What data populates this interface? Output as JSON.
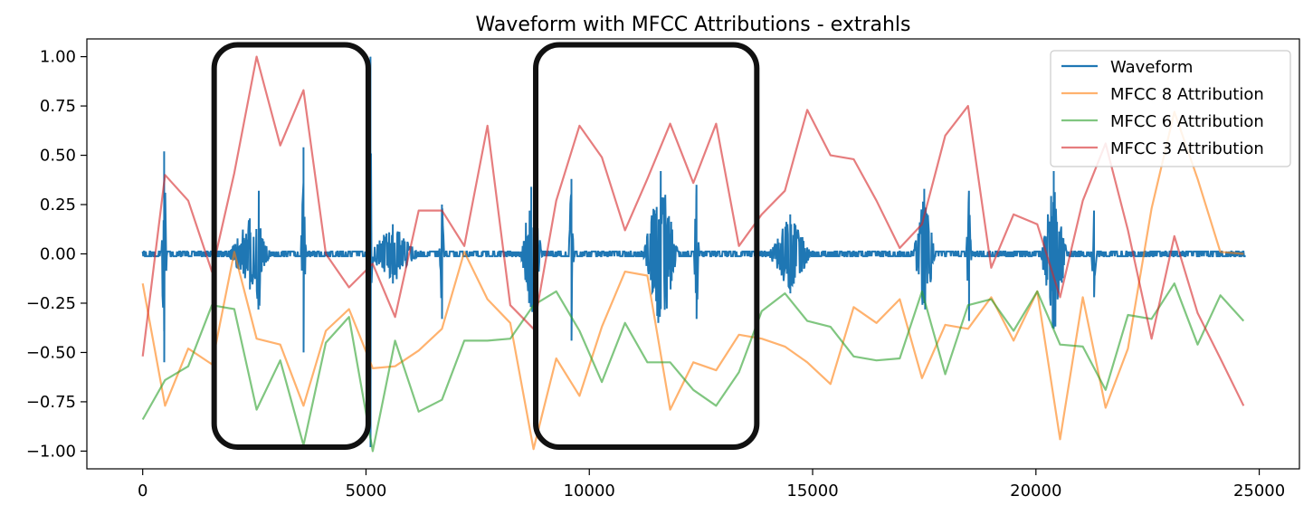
{
  "chart_data": {
    "type": "line",
    "title": "Waveform with MFCC Attributions - extrahls",
    "xlabel": "",
    "ylabel": "",
    "xlim": [
      -1250,
      25900
    ],
    "ylim": [
      -1.09,
      1.09
    ],
    "xticks": [
      0,
      5000,
      10000,
      15000,
      20000,
      25000
    ],
    "xtick_labels": [
      "0",
      "5000",
      "10000",
      "15000",
      "20000",
      "25000"
    ],
    "yticks": [
      1.0,
      0.75,
      0.5,
      0.25,
      0.0,
      -0.25,
      -0.5,
      -0.75,
      -1.0
    ],
    "ytick_labels": [
      "1.00",
      "0.75",
      "0.50",
      "0.25",
      "0.00",
      "−0.25",
      "−0.50",
      "−0.75",
      "−1.00"
    ],
    "grid": false,
    "legend_position": "top-right",
    "series": [
      {
        "name": "Waveform",
        "color": "#1f77b4",
        "kind": "waveform",
        "x_range": [
          0,
          24700
        ],
        "baseline_amplitude": 0.012,
        "bursts": [
          {
            "x": 480,
            "up": 0.52,
            "down": -0.55,
            "width": 60
          },
          {
            "x": 2400,
            "up": 0.18,
            "down": -0.18,
            "width": 500
          },
          {
            "x": 2600,
            "up": 0.32,
            "down": -0.22,
            "width": 120
          },
          {
            "x": 3600,
            "up": 0.54,
            "down": -0.5,
            "width": 60
          },
          {
            "x": 5100,
            "up": 1.0,
            "down": -0.98,
            "width": 40
          },
          {
            "x": 5600,
            "up": 0.15,
            "down": -0.15,
            "width": 600
          },
          {
            "x": 6700,
            "up": 0.25,
            "down": -0.33,
            "width": 60
          },
          {
            "x": 8700,
            "up": 0.34,
            "down": -0.22,
            "width": 250
          },
          {
            "x": 9600,
            "up": 0.38,
            "down": -0.44,
            "width": 60
          },
          {
            "x": 11600,
            "up": 0.42,
            "down": -0.28,
            "width": 400
          },
          {
            "x": 12400,
            "up": 0.35,
            "down": -0.33,
            "width": 60
          },
          {
            "x": 14500,
            "up": 0.2,
            "down": -0.2,
            "width": 500
          },
          {
            "x": 17500,
            "up": 0.33,
            "down": -0.25,
            "width": 250
          },
          {
            "x": 18500,
            "up": 0.32,
            "down": -0.34,
            "width": 60
          },
          {
            "x": 20400,
            "up": 0.42,
            "down": -0.22,
            "width": 300
          },
          {
            "x": 21300,
            "up": 0.22,
            "down": -0.22,
            "width": 60
          }
        ]
      },
      {
        "name": "MFCC 8 Attribution",
        "color": "#ff7f0e",
        "x": [
          0,
          500,
          1020,
          1550,
          2050,
          2550,
          3080,
          3600,
          4100,
          4620,
          5150,
          5650,
          6180,
          6700,
          7200,
          7720,
          8230,
          8750,
          9260,
          9780,
          10280,
          10800,
          11300,
          11810,
          12330,
          12840,
          13350,
          13860,
          14380,
          14880,
          15400,
          15920,
          16430,
          16950,
          17450,
          17970,
          18480,
          19000,
          19500,
          20030,
          20540,
          21050,
          21560,
          22060,
          22590,
          23100,
          23620,
          24130,
          24650
        ],
        "y": [
          -0.15,
          -0.77,
          -0.48,
          -0.56,
          0.01,
          -0.43,
          -0.46,
          -0.77,
          -0.39,
          -0.28,
          -0.58,
          -0.57,
          -0.49,
          -0.38,
          0.01,
          -0.23,
          -0.35,
          -0.99,
          -0.53,
          -0.72,
          -0.37,
          -0.09,
          -0.11,
          -0.79,
          -0.55,
          -0.59,
          -0.41,
          -0.43,
          -0.47,
          -0.55,
          -0.66,
          -0.27,
          -0.35,
          -0.23,
          -0.63,
          -0.36,
          -0.38,
          -0.22,
          -0.44,
          -0.19,
          -0.94,
          -0.22,
          -0.78,
          -0.48,
          0.23,
          0.72,
          0.38,
          0.01,
          0.0
        ]
      },
      {
        "name": "MFCC 6 Attribution",
        "color": "#2ca02c",
        "x": [
          0,
          500,
          1020,
          1550,
          2050,
          2550,
          3080,
          3600,
          4100,
          4620,
          5150,
          5650,
          6180,
          6700,
          7200,
          7720,
          8230,
          8750,
          9260,
          9780,
          10280,
          10800,
          11300,
          11810,
          12330,
          12840,
          13350,
          13860,
          14380,
          14880,
          15400,
          15920,
          16430,
          16950,
          17450,
          17970,
          18480,
          19000,
          19500,
          20030,
          20540,
          21050,
          21560,
          22060,
          22590,
          23100,
          23620,
          24130,
          24650
        ],
        "y": [
          -0.84,
          -0.64,
          -0.57,
          -0.26,
          -0.28,
          -0.79,
          -0.54,
          -0.97,
          -0.45,
          -0.32,
          -1.0,
          -0.44,
          -0.8,
          -0.74,
          -0.44,
          -0.44,
          -0.43,
          -0.26,
          -0.19,
          -0.39,
          -0.65,
          -0.35,
          -0.55,
          -0.55,
          -0.69,
          -0.77,
          -0.6,
          -0.29,
          -0.2,
          -0.34,
          -0.37,
          -0.52,
          -0.54,
          -0.53,
          -0.19,
          -0.61,
          -0.26,
          -0.23,
          -0.39,
          -0.19,
          -0.46,
          -0.47,
          -0.69,
          -0.31,
          -0.33,
          -0.15,
          -0.46,
          -0.21,
          -0.34
        ]
      },
      {
        "name": "MFCC 3 Attribution",
        "color": "#d62728",
        "x": [
          0,
          500,
          1020,
          1550,
          2050,
          2550,
          3080,
          3600,
          4100,
          4620,
          5150,
          5650,
          6180,
          6700,
          7200,
          7720,
          8230,
          8750,
          9260,
          9780,
          10280,
          10800,
          11300,
          11810,
          12330,
          12840,
          13350,
          13860,
          14380,
          14880,
          15400,
          15920,
          16430,
          16950,
          17450,
          17970,
          18480,
          19000,
          19500,
          20030,
          20540,
          21050,
          21560,
          22060,
          22590,
          23100,
          23620,
          24130,
          24650
        ],
        "y": [
          -0.52,
          0.4,
          0.27,
          -0.09,
          0.41,
          1.0,
          0.55,
          0.83,
          0.0,
          -0.17,
          -0.05,
          -0.32,
          0.22,
          0.22,
          0.04,
          0.65,
          -0.26,
          -0.38,
          0.27,
          0.65,
          0.49,
          0.12,
          0.38,
          0.66,
          0.36,
          0.66,
          0.04,
          0.2,
          0.32,
          0.73,
          0.5,
          0.48,
          0.27,
          0.03,
          0.15,
          0.6,
          0.75,
          -0.07,
          0.2,
          0.15,
          -0.22,
          0.27,
          0.56,
          0.12,
          -0.43,
          0.09,
          -0.3,
          -0.53,
          -0.77
        ]
      }
    ],
    "annotations": [
      {
        "kind": "highlight-box",
        "x0": 1600,
        "x1": 5050,
        "y0": -0.98,
        "y1": 1.06
      },
      {
        "kind": "highlight-box",
        "x0": 8800,
        "x1": 13750,
        "y0": -0.98,
        "y1": 1.06
      }
    ]
  }
}
